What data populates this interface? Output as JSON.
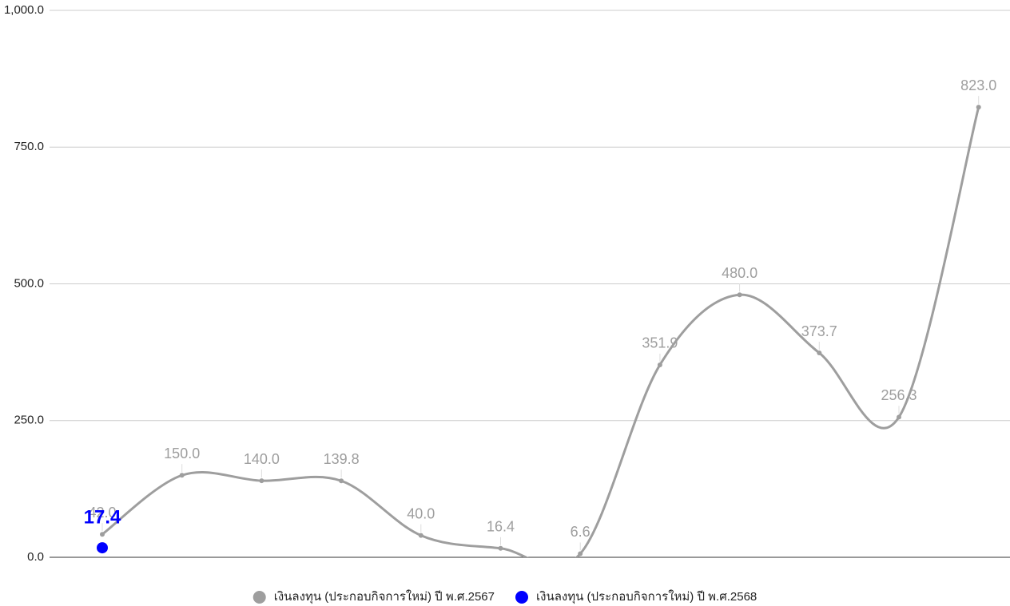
{
  "chart_data": {
    "type": "line",
    "categories": [
      null,
      null,
      null,
      null,
      null,
      null,
      null,
      null,
      null,
      null,
      null,
      null
    ],
    "series": [
      {
        "name": "เงินลงทุน (ประกอบกิจการใหม่) ปี พ.ศ.2567",
        "color": "#9e9e9e",
        "values": [
          42.0,
          150.0,
          140.0,
          139.8,
          40.0,
          16.4,
          6.6,
          351.9,
          480.0,
          373.7,
          256.3,
          823.0
        ],
        "value_labels": [
          "42.0",
          "150.0",
          "140.0",
          "139.8",
          "40.0",
          "16.4",
          "6.6",
          "351.9",
          "480.0",
          "373.7",
          "256.3",
          "823.0"
        ]
      },
      {
        "name": "เงินลงทุน (ประกอบกิจการใหม่) ปี พ.ศ.2568",
        "color": "#0000ff",
        "values": [
          17.4,
          null,
          null,
          null,
          null,
          null,
          null,
          null,
          null,
          null,
          null,
          null
        ]
      }
    ],
    "ylim": [
      0,
      1000
    ],
    "yticks": [
      {
        "value": 0,
        "label": "0.0"
      },
      {
        "value": 250,
        "label": "250.0"
      },
      {
        "value": 500,
        "label": "500.0"
      },
      {
        "value": 750,
        "label": "750.0"
      },
      {
        "value": 1000,
        "label": "1,000.0"
      }
    ],
    "grid": true,
    "legend": "bottom"
  }
}
